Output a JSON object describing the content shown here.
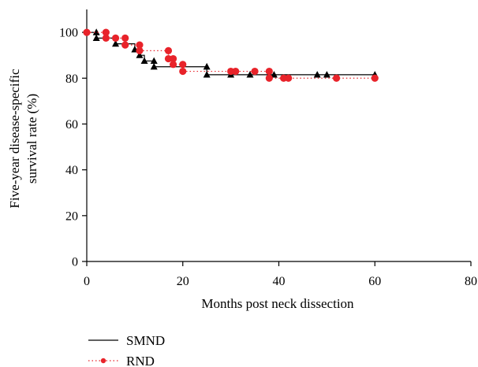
{
  "chart_data": {
    "type": "line",
    "xlabel": "Months post neck dissection",
    "ylabel_line1": "Five-year disease-specific",
    "ylabel_line2": "survival rate (%)",
    "xlim": [
      0,
      80
    ],
    "ylim": [
      0,
      110
    ],
    "xticks": [
      0,
      20,
      40,
      60,
      80
    ],
    "yticks": [
      0,
      20,
      40,
      60,
      80,
      100
    ],
    "grid": false,
    "legend_position": "bottom-left",
    "series": [
      {
        "name": "SMND",
        "style": "solid-step",
        "color": "#000000",
        "marker": "triangle",
        "step_points": [
          [
            0,
            100
          ],
          [
            2,
            100
          ],
          [
            2,
            97.5
          ],
          [
            6,
            97.5
          ],
          [
            6,
            95
          ],
          [
            10,
            95
          ],
          [
            10,
            92.5
          ],
          [
            11,
            92.5
          ],
          [
            11,
            90
          ],
          [
            12,
            90
          ],
          [
            12,
            87.5
          ],
          [
            14,
            87.5
          ],
          [
            14,
            85
          ],
          [
            25,
            85
          ],
          [
            25,
            81.5
          ],
          [
            60,
            81.5
          ]
        ],
        "censor_marks": [
          [
            2,
            100
          ],
          [
            2,
            97.5
          ],
          [
            6,
            95
          ],
          [
            10,
            92.5
          ],
          [
            11,
            90
          ],
          [
            12,
            87.5
          ],
          [
            14,
            87.5
          ],
          [
            14,
            85
          ],
          [
            25,
            85
          ],
          [
            25,
            81.5
          ],
          [
            30,
            81.5
          ],
          [
            34,
            81.5
          ],
          [
            39,
            81.5
          ],
          [
            48,
            81.5
          ],
          [
            50,
            81.5
          ],
          [
            60,
            81.5
          ]
        ]
      },
      {
        "name": "RND",
        "style": "dotted-step",
        "color": "#e8232a",
        "marker": "circle",
        "step_points": [
          [
            0,
            100
          ],
          [
            4,
            100
          ],
          [
            4,
            97.5
          ],
          [
            8,
            97.5
          ],
          [
            8,
            94.5
          ],
          [
            11,
            94.5
          ],
          [
            11,
            92
          ],
          [
            17,
            92
          ],
          [
            17,
            88.5
          ],
          [
            18,
            88.5
          ],
          [
            18,
            86
          ],
          [
            20,
            86
          ],
          [
            20,
            83
          ],
          [
            38,
            83
          ],
          [
            38,
            80
          ],
          [
            60,
            80
          ]
        ],
        "censor_marks": [
          [
            0,
            100
          ],
          [
            4,
            100
          ],
          [
            4,
            97.5
          ],
          [
            6,
            97.5
          ],
          [
            8,
            97.5
          ],
          [
            8,
            94.5
          ],
          [
            11,
            94.5
          ],
          [
            11,
            92
          ],
          [
            17,
            92
          ],
          [
            17,
            88.5
          ],
          [
            18,
            88.5
          ],
          [
            18,
            86
          ],
          [
            20,
            86
          ],
          [
            20,
            83
          ],
          [
            30,
            83
          ],
          [
            31,
            83
          ],
          [
            35,
            83
          ],
          [
            38,
            83
          ],
          [
            38,
            80
          ],
          [
            41,
            80
          ],
          [
            42,
            80
          ],
          [
            52,
            80
          ],
          [
            60,
            80
          ]
        ]
      }
    ]
  }
}
